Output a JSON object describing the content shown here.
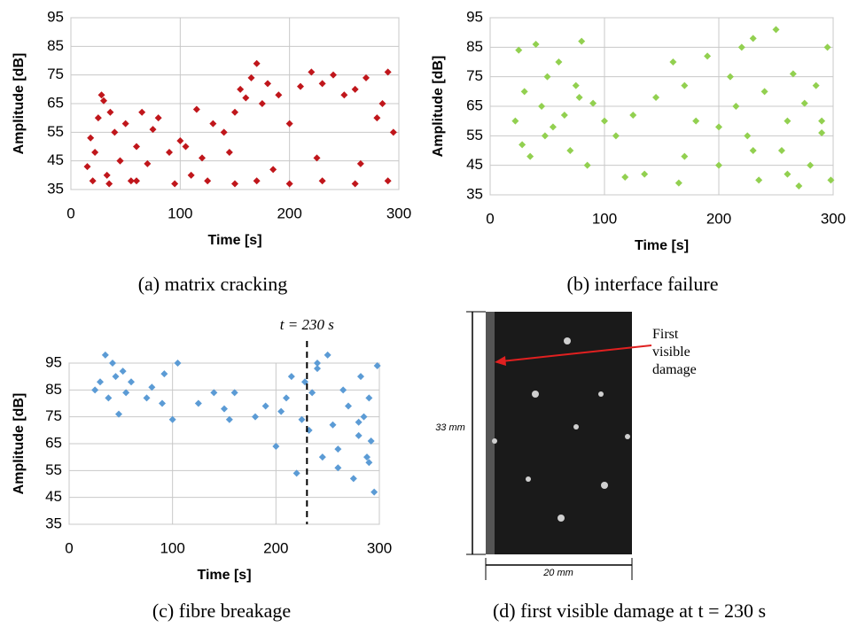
{
  "chart_data": [
    {
      "type": "scatter",
      "caption": "(a) matrix cracking",
      "x_label": "Time [s]",
      "y_label": "Amplitude [dB]",
      "color": "#c0161b",
      "xlim": [
        0,
        300
      ],
      "ylim": [
        35,
        95
      ],
      "xticks": [
        0,
        100,
        200,
        300
      ],
      "yticks": [
        35,
        45,
        55,
        65,
        75,
        85,
        95
      ],
      "grid": true,
      "x": [
        15,
        18,
        22,
        25,
        28,
        30,
        33,
        36,
        40,
        45,
        50,
        55,
        60,
        65,
        70,
        75,
        80,
        90,
        100,
        110,
        115,
        120,
        130,
        140,
        150,
        155,
        160,
        165,
        170,
        175,
        180,
        190,
        200,
        210,
        220,
        230,
        240,
        250,
        260,
        270,
        280,
        285,
        290,
        295,
        20,
        35,
        60,
        95,
        125,
        150,
        170,
        200,
        230,
        260,
        290,
        45,
        105,
        145,
        185,
        225,
        265
      ],
      "values": [
        43,
        53,
        48,
        60,
        68,
        66,
        40,
        62,
        55,
        45,
        58,
        38,
        50,
        62,
        44,
        56,
        60,
        48,
        52,
        40,
        63,
        46,
        58,
        55,
        62,
        70,
        67,
        74,
        79,
        65,
        72,
        68,
        58,
        71,
        76,
        72,
        75,
        68,
        70,
        74,
        60,
        65,
        76,
        55,
        38,
        37,
        38,
        37,
        38,
        37,
        38,
        37,
        38,
        37,
        38,
        45,
        50,
        48,
        42,
        46,
        44
      ]
    },
    {
      "type": "scatter",
      "caption": "(b) interface failure",
      "x_label": "Time [s]",
      "y_label": "Amplitude [dB]",
      "color": "#92d050",
      "xlim": [
        0,
        300
      ],
      "ylim": [
        35,
        95
      ],
      "xticks": [
        0,
        100,
        200,
        300
      ],
      "yticks": [
        35,
        45,
        55,
        65,
        75,
        85,
        95
      ],
      "grid": true,
      "x": [
        22,
        25,
        30,
        35,
        40,
        45,
        50,
        55,
        60,
        65,
        70,
        75,
        80,
        85,
        90,
        100,
        110,
        118,
        125,
        135,
        145,
        160,
        165,
        170,
        180,
        190,
        200,
        210,
        215,
        220,
        225,
        230,
        235,
        240,
        250,
        255,
        260,
        265,
        270,
        275,
        280,
        285,
        290,
        295,
        298,
        28,
        48,
        78,
        170,
        200,
        230,
        260,
        290
      ],
      "values": [
        60,
        84,
        70,
        48,
        86,
        65,
        75,
        58,
        80,
        62,
        50,
        72,
        87,
        45,
        66,
        60,
        55,
        41,
        62,
        42,
        68,
        80,
        39,
        72,
        60,
        82,
        45,
        75,
        65,
        85,
        55,
        88,
        40,
        70,
        91,
        50,
        60,
        76,
        38,
        66,
        45,
        72,
        56,
        85,
        40,
        52,
        55,
        68,
        48,
        58,
        50,
        42,
        60
      ]
    },
    {
      "type": "scatter",
      "caption": "(c) fibre breakage",
      "x_label": "Time [s]",
      "y_label": "Amplitude [dB]",
      "color": "#5b9bd5",
      "xlim": [
        0,
        300
      ],
      "ylim": [
        35,
        95
      ],
      "xticks": [
        0,
        100,
        200,
        300
      ],
      "yticks": [
        35,
        45,
        55,
        65,
        75,
        85,
        95
      ],
      "grid": true,
      "annotations": [
        {
          "text": "t = 230 s",
          "x": 230
        }
      ],
      "x": [
        25,
        30,
        35,
        38,
        42,
        45,
        48,
        52,
        55,
        60,
        75,
        80,
        90,
        92,
        100,
        105,
        125,
        140,
        150,
        155,
        160,
        180,
        190,
        200,
        205,
        210,
        215,
        220,
        225,
        228,
        232,
        235,
        240,
        245,
        250,
        255,
        260,
        265,
        270,
        275,
        280,
        282,
        285,
        288,
        290,
        292,
        295,
        298,
        240,
        260,
        280,
        290
      ],
      "values": [
        85,
        88,
        98,
        82,
        95,
        90,
        76,
        92,
        84,
        88,
        82,
        86,
        80,
        91,
        74,
        95,
        80,
        84,
        78,
        74,
        84,
        75,
        79,
        64,
        77,
        82,
        90,
        54,
        74,
        88,
        70,
        84,
        93,
        60,
        98,
        72,
        56,
        85,
        79,
        52,
        68,
        90,
        75,
        60,
        82,
        66,
        47,
        94,
        95,
        63,
        73,
        58
      ]
    }
  ],
  "image_panel": {
    "annotation": "First visible damage",
    "height_label": "33 mm",
    "width_label": "20 mm",
    "caption": "(d) first visible damage at t = 230 s"
  }
}
